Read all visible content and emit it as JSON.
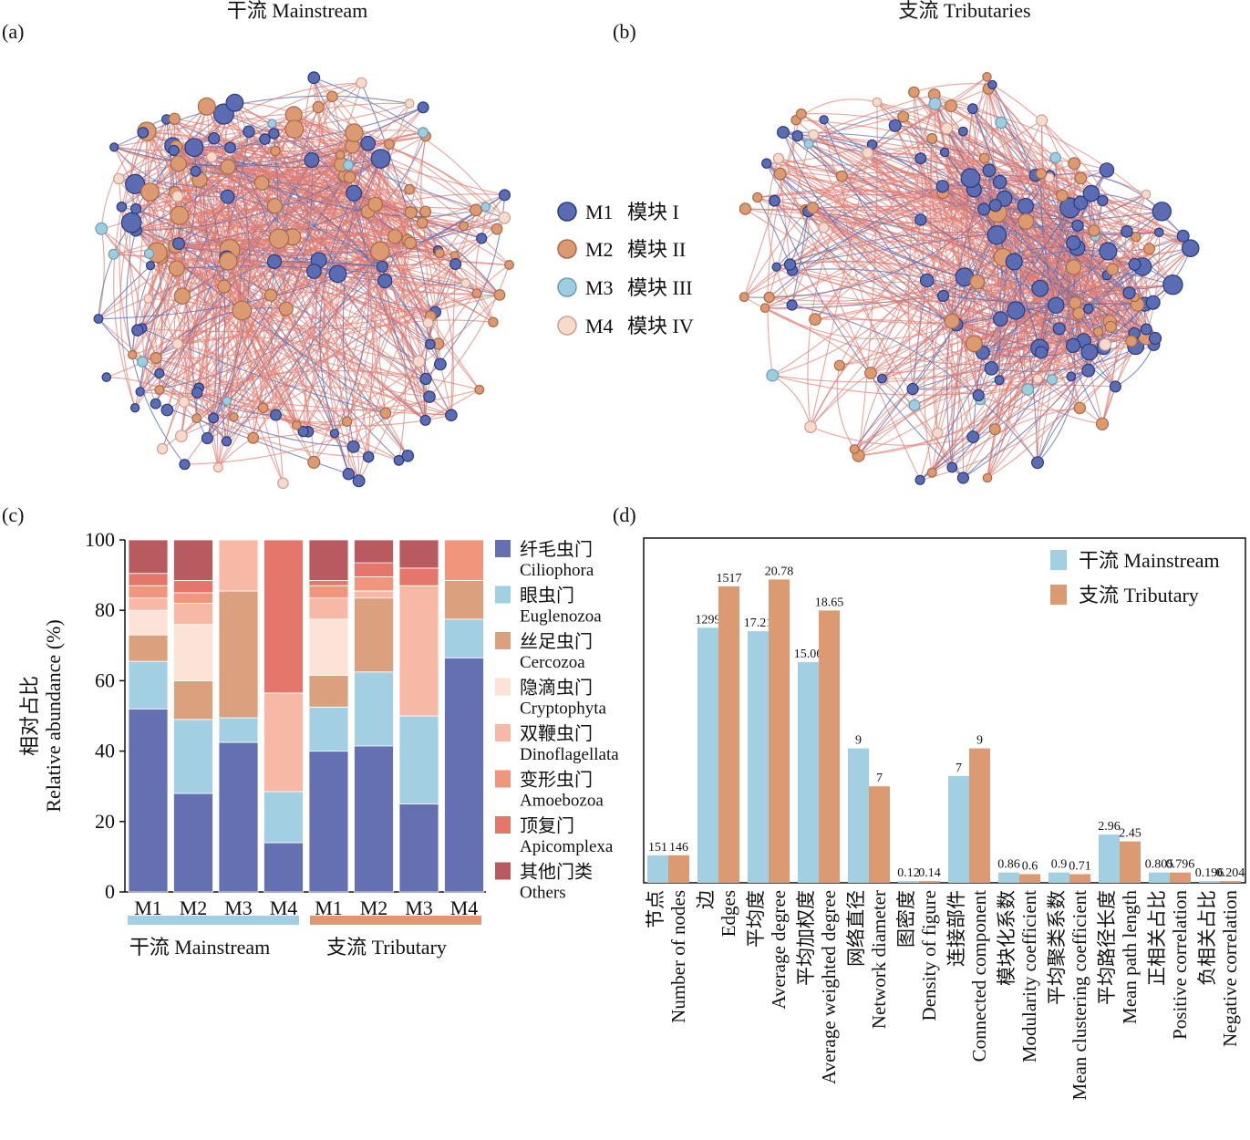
{
  "panels": {
    "a": {
      "tag": "(a)",
      "title": "干流 Mainstream"
    },
    "b": {
      "tag": "(b)",
      "title": "支流 Tributaries"
    },
    "c": {
      "tag": "(c)"
    },
    "d": {
      "tag": "(d)"
    }
  },
  "colors": {
    "m1": "#5b6cb2",
    "m2": "#dc9a73",
    "m3": "#9fcde0",
    "m4": "#fad9cd",
    "pos_edge": "#e07d74",
    "neg_edge": "#5b6cb2",
    "mainstream": "#a3cfe2",
    "tributary": "#dc9a73"
  },
  "network_legend": [
    {
      "label": "M1",
      "cn": "模块 I",
      "color": "#5b6cb2"
    },
    {
      "label": "M2",
      "cn": "模块 II",
      "color": "#dc9a73"
    },
    {
      "label": "M3",
      "cn": "模块 III",
      "color": "#9fcde0"
    },
    {
      "label": "M4",
      "cn": "模块 IV",
      "color": "#fad9cd"
    }
  ],
  "chart_data": [
    {
      "type": "bar",
      "stacked": true,
      "panel": "c",
      "categories": [
        "M1",
        "M2",
        "M3",
        "M4",
        "M1",
        "M2",
        "M3",
        "M4"
      ],
      "groups": [
        {
          "label": "干流 Mainstream",
          "span": [
            0,
            3
          ]
        },
        {
          "label": "支流 Tributary",
          "span": [
            4,
            7
          ]
        }
      ],
      "ylabel_cn": "相对占比",
      "ylabel": "Relative abundance (%)",
      "ylim": [
        0,
        100
      ],
      "yticks": [
        0,
        20,
        40,
        60,
        80,
        100
      ],
      "series": [
        {
          "name": "纤毛虫门",
          "name_en": "Ciliophora",
          "color": "#6470b1",
          "values": [
            52,
            28,
            42.5,
            14,
            40,
            41.5,
            25,
            66.5
          ]
        },
        {
          "name": "眼虫门",
          "name_en": "Euglenozoa",
          "color": "#a3cfe2",
          "values": [
            13.5,
            21,
            7,
            14.5,
            12.5,
            21,
            25,
            11
          ]
        },
        {
          "name": "丝足虫门",
          "name_en": "Cercozoa",
          "color": "#dba07e",
          "values": [
            7.5,
            11,
            36,
            0,
            9,
            21,
            0,
            11
          ]
        },
        {
          "name": "隐滴虫门",
          "name_en": "Cryptophyta",
          "color": "#fce2d7",
          "values": [
            7,
            16,
            0,
            0,
            16,
            0,
            0,
            0
          ]
        },
        {
          "name": "双鞭虫门",
          "name_en": "Dinoflagellata",
          "color": "#f7b9a6",
          "values": [
            3.5,
            6,
            14.5,
            28,
            6,
            2,
            37,
            0
          ]
        },
        {
          "name": "变形虫门",
          "name_en": "Amoebozoa",
          "color": "#f1957d",
          "values": [
            3.5,
            3,
            0,
            0,
            3.5,
            4,
            0,
            11.5
          ]
        },
        {
          "name": "顶复门",
          "name_en": "Apicomplexa",
          "color": "#e4766b",
          "values": [
            3.5,
            3.5,
            0,
            43.5,
            1.5,
            4,
            5,
            0
          ]
        },
        {
          "name": "其他门类",
          "name_en": "Others",
          "color": "#b95a60",
          "values": [
            9.5,
            11.5,
            0,
            0,
            11.5,
            6.5,
            8,
            0
          ]
        }
      ]
    },
    {
      "type": "bar",
      "panel": "d",
      "categories": [
        {
          "cn": "节点",
          "en": "Number of nodes"
        },
        {
          "cn": "边",
          "en": "Edges"
        },
        {
          "cn": "平均度",
          "en": "Average degree"
        },
        {
          "cn": "平均加权度",
          "en": "Average weighted degree"
        },
        {
          "cn": "网络直径",
          "en": "Network diameter"
        },
        {
          "cn": "图密度",
          "en": "Density of figure"
        },
        {
          "cn": "连接部件",
          "en": "Connected component"
        },
        {
          "cn": "模块化系数",
          "en": "Modularity coefficient"
        },
        {
          "cn": "平均聚类系数",
          "en": "Mean clustering coefficient"
        },
        {
          "cn": "平均路径长度",
          "en": "Mean path length"
        },
        {
          "cn": "正相关占比",
          "en": "Positive correlation"
        },
        {
          "cn": "负相关占比",
          "en": "Negative correlation"
        }
      ],
      "series": [
        {
          "name": "干流 Mainstream",
          "color": "#a3cfe2",
          "values": [
            151,
            1299,
            17.21,
            15.06,
            9,
            0.12,
            7,
            0.86,
            0.9,
            2.96,
            0.805,
            0.196
          ],
          "labels": [
            "151",
            "1299",
            "17.21",
            "15.06",
            "9",
            "0.12",
            "7",
            "0.86",
            "0.9",
            "2.96",
            "0.805",
            "0.196"
          ],
          "bar_fraction": [
            0.08,
            0.74,
            0.73,
            0.64,
            0.39,
            0.005,
            0.31,
            0.03,
            0.03,
            0.14,
            0.03,
            0.005
          ]
        },
        {
          "name": "支流 Tributary",
          "color": "#dc9a73",
          "values": [
            146,
            1517,
            20.78,
            18.65,
            7,
            0.14,
            9,
            0.6,
            0.71,
            2.45,
            0.796,
            0.204
          ],
          "labels": [
            "146",
            "1517",
            "20.78",
            "18.65",
            "7",
            "0.14",
            "9",
            "0.6",
            "0.71",
            "2.45",
            "0.796",
            "0.204"
          ],
          "bar_fraction": [
            0.08,
            0.86,
            0.88,
            0.79,
            0.28,
            0.005,
            0.39,
            0.025,
            0.025,
            0.12,
            0.03,
            0.005
          ]
        }
      ]
    }
  ]
}
